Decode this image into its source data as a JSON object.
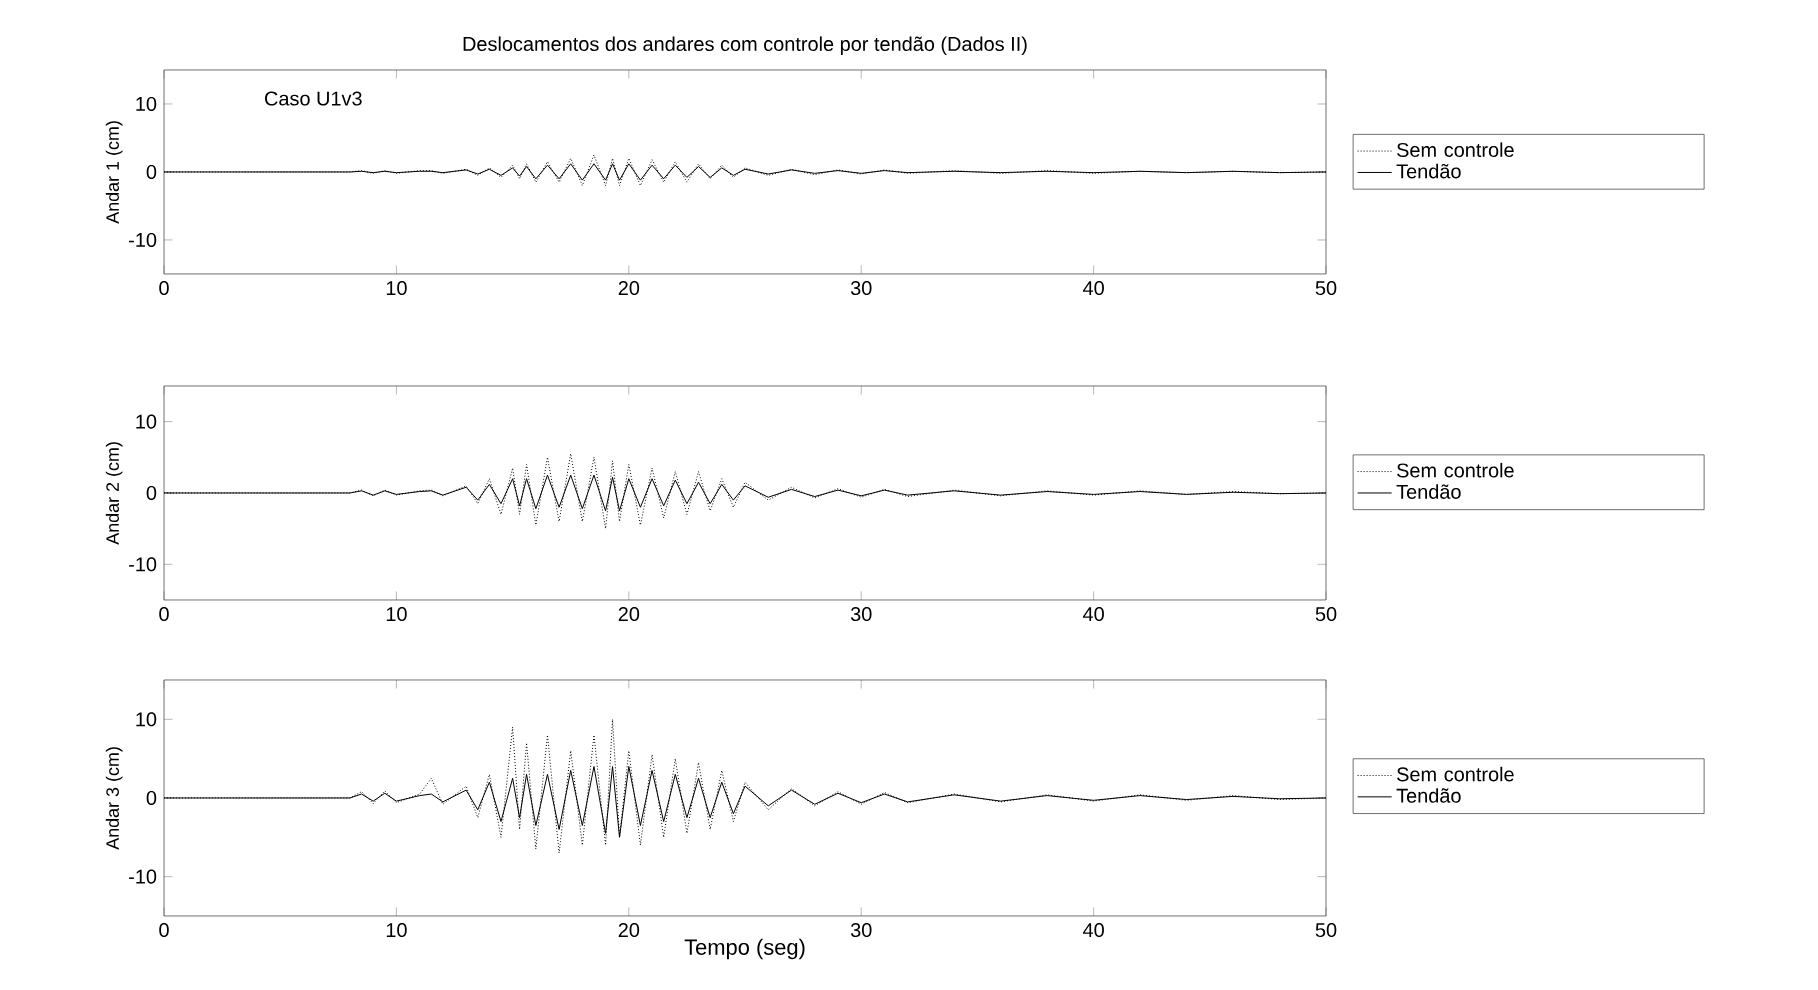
{
  "chart_data": [
    {
      "type": "line",
      "title": "Deslocamentos dos andares com controle por tendão (Dados II)",
      "ylabel": "Andar 1 (cm)",
      "annotations": [
        "Caso U1v3"
      ],
      "xlim": [
        0,
        50
      ],
      "ylim": [
        -15,
        15
      ],
      "xticks": [
        0,
        10,
        20,
        30,
        40,
        50
      ],
      "yticks": [
        -10,
        0,
        10
      ],
      "legend": "right",
      "x": [
        0,
        8,
        8.5,
        9,
        9.5,
        10,
        11,
        11.5,
        12,
        13,
        13.5,
        14,
        14.5,
        15,
        15.3,
        15.6,
        16,
        16.5,
        17,
        17.5,
        18,
        18.5,
        19,
        19.3,
        19.6,
        20,
        20.5,
        21,
        21.5,
        22,
        22.5,
        23,
        23.5,
        24,
        24.5,
        25,
        26,
        27,
        28,
        29,
        30,
        31,
        32,
        34,
        36,
        38,
        40,
        42,
        44,
        46,
        48,
        50
      ],
      "series": [
        {
          "name": "Sem controle",
          "color": "#000000",
          "line_style": "dotted",
          "values": [
            0,
            0,
            0.2,
            -0.2,
            0.2,
            -0.2,
            0.2,
            0.2,
            -0.2,
            0.4,
            -0.5,
            0.6,
            -0.8,
            1,
            -1,
            1.2,
            -1.5,
            1.5,
            -1.5,
            2,
            -2,
            2.5,
            -2,
            2,
            -2,
            2,
            -2,
            1.8,
            -1.5,
            1.5,
            -1.5,
            1.2,
            -1,
            1,
            -0.8,
            0.6,
            -0.5,
            0.4,
            -0.4,
            0.3,
            -0.3,
            0.3,
            -0.2,
            0.2,
            -0.2,
            0.2,
            -0.2,
            0.1,
            -0.1,
            0.1,
            -0.1,
            0
          ]
        },
        {
          "name": "Tendão",
          "color": "#000000",
          "line_style": "solid",
          "values": [
            0,
            0,
            0.1,
            -0.1,
            0.1,
            -0.1,
            0.1,
            0.1,
            -0.1,
            0.3,
            -0.3,
            0.4,
            -0.5,
            0.6,
            -0.6,
            0.8,
            -1,
            1,
            -1,
            1.2,
            -1.2,
            1.2,
            -1.2,
            1.2,
            -1.2,
            1.2,
            -1.2,
            1,
            -1,
            1,
            -0.8,
            0.8,
            -0.8,
            0.6,
            -0.5,
            0.4,
            -0.3,
            0.3,
            -0.2,
            0.2,
            -0.2,
            0.2,
            -0.1,
            0.1,
            -0.1,
            0.1,
            -0.1,
            0.1,
            -0.1,
            0.1,
            -0.1,
            0
          ]
        }
      ]
    },
    {
      "type": "line",
      "ylabel": "Andar 2 (cm)",
      "xlim": [
        0,
        50
      ],
      "ylim": [
        -15,
        15
      ],
      "xticks": [
        0,
        10,
        20,
        30,
        40,
        50
      ],
      "yticks": [
        -10,
        0,
        10
      ],
      "legend": "right",
      "x": [
        0,
        8,
        8.5,
        9,
        9.5,
        10,
        11,
        11.5,
        12,
        13,
        13.5,
        14,
        14.5,
        15,
        15.3,
        15.6,
        16,
        16.5,
        17,
        17.5,
        18,
        18.5,
        19,
        19.3,
        19.6,
        20,
        20.5,
        21,
        21.5,
        22,
        22.5,
        23,
        23.5,
        24,
        24.5,
        25,
        26,
        27,
        28,
        29,
        30,
        31,
        32,
        34,
        36,
        38,
        40,
        42,
        44,
        46,
        48,
        50
      ],
      "series": [
        {
          "name": "Sem controle",
          "color": "#000000",
          "line_style": "dotted",
          "values": [
            0,
            0,
            0.4,
            -0.4,
            0.4,
            -0.3,
            0.3,
            0.4,
            -0.4,
            1,
            -1.5,
            2,
            -3,
            3.5,
            -3,
            4,
            -4.5,
            5,
            -4,
            5.5,
            -4,
            5,
            -5,
            4.5,
            -4,
            4,
            -4.5,
            3.5,
            -3.5,
            3,
            -3,
            3,
            -2.5,
            2,
            -2,
            1.5,
            -1,
            0.8,
            -0.7,
            0.6,
            -0.6,
            0.5,
            -0.5,
            0.4,
            -0.4,
            0.3,
            -0.3,
            0.3,
            -0.2,
            0.2,
            -0.1,
            0
          ]
        },
        {
          "name": "Tendão",
          "color": "#000000",
          "line_style": "solid",
          "values": [
            0,
            0,
            0.3,
            -0.3,
            0.3,
            -0.2,
            0.2,
            0.3,
            -0.3,
            0.8,
            -1,
            1.2,
            -1.5,
            2,
            -1.8,
            2,
            -2.2,
            2.5,
            -2,
            2.5,
            -2.2,
            2.5,
            -2.5,
            2.2,
            -2.5,
            2,
            -2,
            2,
            -1.8,
            1.8,
            -1.5,
            1.5,
            -1.5,
            1.2,
            -1,
            1,
            -0.6,
            0.5,
            -0.5,
            0.4,
            -0.4,
            0.4,
            -0.3,
            0.3,
            -0.3,
            0.2,
            -0.2,
            0.2,
            -0.2,
            0.1,
            -0.1,
            0
          ]
        }
      ]
    },
    {
      "type": "line",
      "xlabel": "Tempo (seg)",
      "ylabel": "Andar 3 (cm)",
      "xlim": [
        0,
        50
      ],
      "ylim": [
        -15,
        15
      ],
      "xticks": [
        0,
        10,
        20,
        30,
        40,
        50
      ],
      "yticks": [
        -10,
        0,
        10
      ],
      "legend": "right",
      "x": [
        0,
        8,
        8.5,
        9,
        9.5,
        10,
        11,
        11.5,
        12,
        13,
        13.5,
        14,
        14.5,
        15,
        15.3,
        15.6,
        16,
        16.5,
        17,
        17.5,
        18,
        18.5,
        19,
        19.3,
        19.6,
        20,
        20.5,
        21,
        21.5,
        22,
        22.5,
        23,
        23.5,
        24,
        24.5,
        25,
        26,
        27,
        28,
        29,
        30,
        31,
        32,
        34,
        36,
        38,
        40,
        42,
        44,
        46,
        48,
        50
      ],
      "series": [
        {
          "name": "Sem controle",
          "color": "#000000",
          "line_style": "dotted",
          "values": [
            0,
            0,
            0.8,
            -0.7,
            0.9,
            -0.6,
            0.5,
            2.5,
            -0.8,
            1.5,
            -2.5,
            3,
            -5,
            9,
            -4,
            7,
            -6.5,
            8,
            -7,
            6,
            -6,
            8,
            -6,
            10,
            -5,
            6,
            -6,
            5.5,
            -5,
            5,
            -4.5,
            4.5,
            -4,
            3.5,
            -3,
            2,
            -1.5,
            1.2,
            -1,
            0.8,
            -0.8,
            0.7,
            -0.6,
            0.5,
            -0.5,
            0.4,
            -0.4,
            0.4,
            -0.3,
            0.3,
            -0.2,
            0
          ]
        },
        {
          "name": "Tendão",
          "color": "#000000",
          "line_style": "solid",
          "values": [
            0,
            0,
            0.5,
            -0.4,
            0.6,
            -0.4,
            0.3,
            0.5,
            -0.5,
            1,
            -1.5,
            2,
            -3,
            2.5,
            -2.5,
            3,
            -3.5,
            3,
            -4,
            3.5,
            -3.5,
            4,
            -4.5,
            4,
            -5,
            4,
            -3.5,
            3.5,
            -3,
            3,
            -2.5,
            2.5,
            -2.5,
            2,
            -2,
            1.5,
            -1,
            1,
            -0.8,
            0.6,
            -0.6,
            0.5,
            -0.5,
            0.4,
            -0.4,
            0.3,
            -0.3,
            0.3,
            -0.2,
            0.2,
            -0.1,
            0
          ]
        }
      ]
    }
  ]
}
